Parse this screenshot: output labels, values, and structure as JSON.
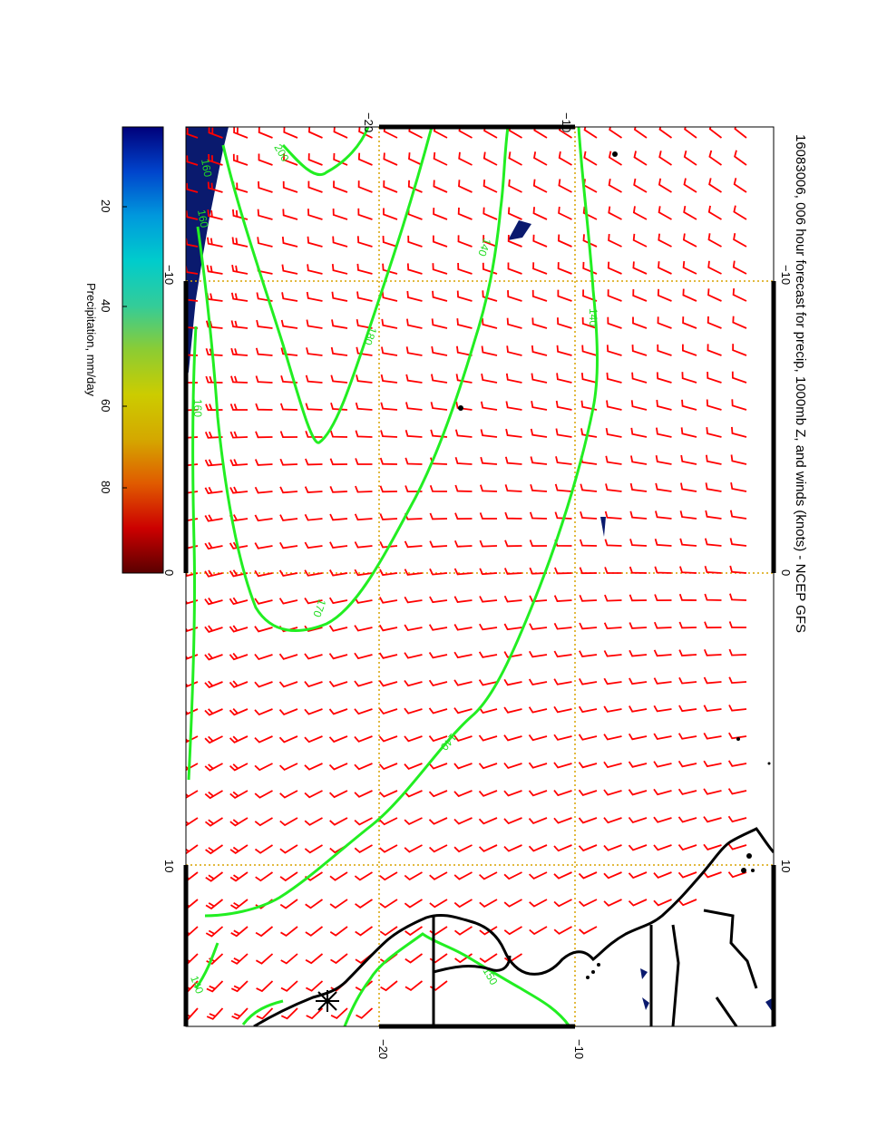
{
  "title": "16083006, 006 hour forecast for precip, 1000mb Z, and winds (knots) - NCEP GFS",
  "colorbar": {
    "label": "Precipitation, mm/day",
    "ticks": [
      "20",
      "40",
      "60",
      "80"
    ],
    "stops": [
      "#5a0000",
      "#cc0000",
      "#e05a00",
      "#d4a800",
      "#cccc00",
      "#8ccc33",
      "#33cc99",
      "#00cccc",
      "#0099dd",
      "#0044cc",
      "#00007a"
    ]
  },
  "map": {
    "lon_labels": [
      "−10",
      "0",
      "10"
    ],
    "lat_labels": [
      "−20",
      "−10"
    ],
    "gridline_color": "#d9a400",
    "wind_barb_color": "#ff0000",
    "contour_color": "#22ee22",
    "coastline_color": "#000000",
    "precip_color": "#0a1a6e",
    "contour_labels": [
      "200",
      "160",
      "180",
      "160",
      "160",
      "140",
      "170",
      "140",
      "140",
      "140",
      "150"
    ]
  }
}
